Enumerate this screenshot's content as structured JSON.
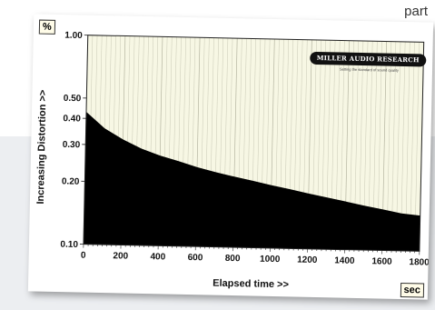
{
  "page": {
    "corner_text": "part"
  },
  "chart_data": {
    "type": "area",
    "title": "",
    "xlabel": "Elapsed time >>",
    "ylabel": "Increasing Distortion >>",
    "y_unit": "%",
    "x_unit": "sec",
    "xlim": [
      0,
      1800
    ],
    "ylim": [
      0.1,
      1.0
    ],
    "y_scale": "log",
    "x_ticks": [
      0,
      200,
      400,
      600,
      800,
      1000,
      1200,
      1400,
      1600,
      1800
    ],
    "y_ticks": [
      "1.00",
      "0.50",
      "0.40",
      "0.30",
      "0.20",
      "0.10"
    ],
    "y_tick_values": [
      1.0,
      0.5,
      0.4,
      0.3,
      0.2,
      0.1
    ],
    "grid": "vertical",
    "colors": {
      "area": "#000000",
      "background": "#f7f7e4",
      "grid": "#b4b4a0"
    },
    "series": [
      {
        "x": [
          0,
          100,
          200,
          300,
          400,
          500,
          600,
          700,
          800,
          900,
          1000,
          1100,
          1200,
          1300,
          1400,
          1500,
          1600,
          1700,
          1800
        ],
        "values": [
          0.43,
          0.36,
          0.32,
          0.29,
          0.27,
          0.255,
          0.24,
          0.228,
          0.218,
          0.209,
          0.2,
          0.192,
          0.184,
          0.177,
          0.17,
          0.163,
          0.157,
          0.151,
          0.148
        ]
      }
    ],
    "logo_text": "MILLER AUDIO RESEARCH",
    "logo_tagline": "Setting the standard of sound quality"
  }
}
